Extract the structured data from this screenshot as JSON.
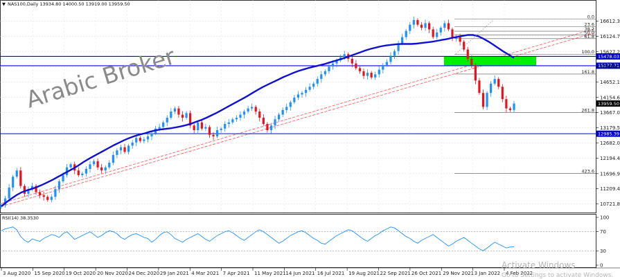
{
  "header": {
    "symbol_line": "NAS100,Daily  13934.80 14000.50 13919.00 13959.50"
  },
  "watermark": "Arabic Broker",
  "activate_windows": {
    "title": "Activate Windows",
    "subtitle": "Go to Settings to activate Windows."
  },
  "colors": {
    "up_candle": "#1e90ff",
    "down_candle": "#e8111e",
    "moving_average": "#1010d0",
    "horizontal_levels": "#0000ff",
    "support_zone": "#00ee00",
    "channel_lines": "#ff4d4d",
    "rsi_line": "#1e90ff",
    "grid": "#d9d9d9"
  },
  "chart_data": [
    {
      "type": "candlestick",
      "title": "NAS100,Daily",
      "ylim": [
        10600,
        16850
      ],
      "y_ticks": [
        "16612.30",
        "16124.70",
        "15627.20",
        "15139.55",
        "14652.10",
        "14154.60",
        "13667.05",
        "13179.50",
        "12682.00",
        "12194.45",
        "11696.95",
        "11209.40",
        "10721.85"
      ],
      "x_ticks": [
        "3 Aug 2020",
        "15 Sep 2020",
        "19 Oct 2020",
        "20 Nov 2020",
        "24 Dec 2020",
        "29 Jan 2021",
        "4 Mar 2021",
        "7 Apr 2021",
        "11 May 2021",
        "14 Jun 2021",
        "16 Jul 2021",
        "19 Aug 2021",
        "22 Sep 2021",
        "26 Oct 2021",
        "29 Nov 2021",
        "3 Jan 2022",
        "4 Feb 2022"
      ],
      "last_close": 13959.5,
      "price_label": "13959.50",
      "horizontal_levels": [
        {
          "value": 15478.03,
          "label": "15478.03"
        },
        {
          "value": 15177.71,
          "label": "15177.71"
        },
        {
          "value": 12985.39,
          "label": "12985.39"
        }
      ],
      "support_zone": {
        "from": 15177.71,
        "to": 15478.03
      },
      "fibonacci": [
        {
          "level": "0.0",
          "price": 16680
        },
        {
          "level": "23.6",
          "price": 16440
        },
        {
          "level": "38.2",
          "price": 16290
        },
        {
          "level": "50.0",
          "price": 16170
        },
        {
          "level": "61.8",
          "price": 16050
        },
        {
          "level": "100.0",
          "price": 15550
        },
        {
          "level": "161.8",
          "price": 14910
        },
        {
          "level": "261.8",
          "price": 13670
        },
        {
          "level": "423.6",
          "price": 11700
        }
      ],
      "series": [
        {
          "name": "Close",
          "values": [
            10680,
            10900,
            11250,
            11600,
            11800,
            11300,
            11050,
            11200,
            11300,
            11100,
            11000,
            10950,
            10850,
            10950,
            11200,
            11450,
            11650,
            11900,
            12000,
            11800,
            11650,
            11700,
            11850,
            12000,
            12100,
            11900,
            11800,
            11900,
            12050,
            12300,
            12450,
            12550,
            12400,
            12600,
            12700,
            12850,
            12750,
            12800,
            12900,
            13000,
            13150,
            13200,
            13350,
            13500,
            13700,
            13800,
            13600,
            13500,
            13650,
            13250,
            13100,
            13350,
            13150,
            13200,
            12950,
            12900,
            13100,
            13150,
            13300,
            13350,
            13450,
            13500,
            13600,
            13700,
            13800,
            13850,
            13700,
            13500,
            13300,
            13100,
            13250,
            13450,
            13600,
            13750,
            13850,
            14000,
            14150,
            14250,
            14300,
            14400,
            14500,
            14600,
            14750,
            14900,
            15000,
            15150,
            15250,
            15350,
            15450,
            15550,
            15400,
            15250,
            15100,
            15000,
            14850,
            14950,
            14800,
            14900,
            15050,
            15200,
            15300,
            15500,
            15650,
            15900,
            16100,
            16300,
            16500,
            16650,
            16500,
            16400,
            16550,
            16350,
            16100,
            16250,
            16400,
            16550,
            16350,
            16050,
            16100,
            15950,
            15700,
            15400,
            15200,
            14700,
            14300,
            13850,
            14300,
            14600,
            14750,
            14500,
            14100,
            13800,
            13750,
            13959.5
          ]
        },
        {
          "name": "MA",
          "values": [
            10650,
            10780,
            10900,
            11010,
            11100,
            11160,
            11210,
            11270,
            11340,
            11420,
            11500,
            11590,
            11680,
            11770,
            11860,
            11960,
            12070,
            12170,
            12260,
            12350,
            12440,
            12530,
            12620,
            12700,
            12780,
            12850,
            12910,
            12960,
            13000,
            13050,
            13090,
            13120,
            13140,
            13160,
            13190,
            13220,
            13260,
            13310,
            13370,
            13430,
            13500,
            13580,
            13660,
            13750,
            13840,
            13930,
            14020,
            14110,
            14200,
            14300,
            14400,
            14490,
            14570,
            14650,
            14730,
            14810,
            14880,
            14950,
            15010,
            15060,
            15110,
            15150,
            15190,
            15230,
            15280,
            15330,
            15380,
            15430,
            15490,
            15550,
            15610,
            15670,
            15720,
            15760,
            15800,
            15830,
            15850,
            15870,
            15880,
            15880,
            15880,
            15890,
            15910,
            15930,
            15950,
            15980,
            16010,
            16040,
            16080,
            16110,
            16140,
            16170,
            16170,
            16130,
            16050,
            15960,
            15850,
            15740,
            15630,
            15530,
            15430
          ]
        }
      ]
    },
    {
      "type": "line",
      "title": "RSI(14) 38.3530",
      "ylim": [
        0,
        100
      ],
      "y_ticks": [
        "100",
        "70",
        "30",
        "0"
      ],
      "reference_lines": [
        70,
        30
      ],
      "series": [
        {
          "name": "RSI(14)",
          "values": [
            72,
            76,
            78,
            80,
            74,
            60,
            52,
            48,
            55,
            52,
            50,
            56,
            60,
            64,
            62,
            58,
            66,
            70,
            62,
            54,
            58,
            62,
            66,
            70,
            64,
            58,
            62,
            68,
            72,
            70,
            66,
            58,
            54,
            60,
            64,
            66,
            62,
            58,
            56,
            48,
            54,
            62,
            68,
            70,
            64,
            56,
            52,
            48,
            54,
            58,
            62,
            66,
            60,
            54,
            50,
            56,
            62,
            66,
            70,
            72,
            68,
            62,
            56,
            52,
            58,
            64,
            70,
            74,
            70,
            64,
            58,
            52,
            46,
            50,
            56,
            62,
            66,
            70,
            72,
            68,
            62,
            56,
            52,
            46,
            44,
            50,
            56,
            62,
            66,
            70,
            74,
            72,
            66,
            60,
            54,
            50,
            56,
            62,
            66,
            72,
            76,
            80,
            78,
            72,
            66,
            60,
            56,
            50,
            46,
            52,
            56,
            60,
            64,
            58,
            52,
            46,
            40,
            44,
            50,
            54,
            58,
            52,
            46,
            40,
            34,
            30,
            36,
            42,
            48,
            44,
            40,
            36,
            38,
            38.35
          ]
        }
      ]
    }
  ]
}
